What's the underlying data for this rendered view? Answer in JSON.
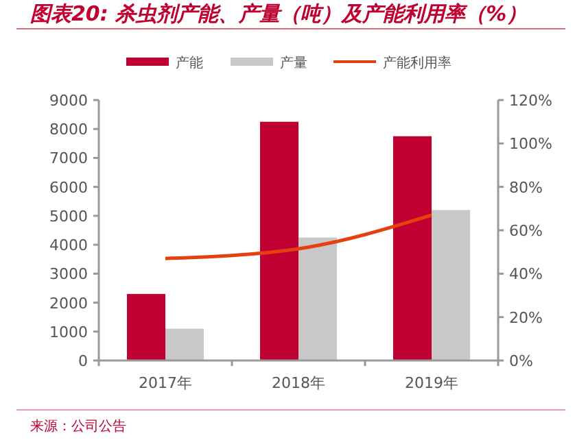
{
  "chart_data": {
    "type": "bar",
    "title": "图表20: 杀虫剂产能、产量（吨）及产能利用率（%）",
    "categories": [
      "2017年",
      "2018年",
      "2019年"
    ],
    "series": [
      {
        "name": "产能",
        "color": "#c00030",
        "values": [
          2300,
          8250,
          7750
        ]
      },
      {
        "name": "产量",
        "color": "#c8c8c8",
        "values": [
          1100,
          4250,
          5200
        ]
      },
      {
        "name": "产能利用率",
        "type": "line",
        "axis": "y2",
        "color": "#e64010",
        "values": [
          47,
          51.5,
          67
        ]
      }
    ],
    "ylim": [
      0,
      9000
    ],
    "yticks": [
      0,
      1000,
      2000,
      3000,
      4000,
      5000,
      6000,
      7000,
      8000,
      9000
    ],
    "y2lim": [
      0,
      120
    ],
    "y2ticks": [
      {
        "value": 0,
        "label": "0%"
      },
      {
        "value": 20,
        "label": "20%"
      },
      {
        "value": 40,
        "label": "40%"
      },
      {
        "value": 60,
        "label": "60%"
      },
      {
        "value": 80,
        "label": "80%"
      },
      {
        "value": 100,
        "label": "100%"
      },
      {
        "value": 120,
        "label": "120%"
      }
    ],
    "legend": "top",
    "grid": false,
    "marker": "none",
    "line_style": "solid",
    "annotations": [
      "来源：公司公告"
    ]
  }
}
